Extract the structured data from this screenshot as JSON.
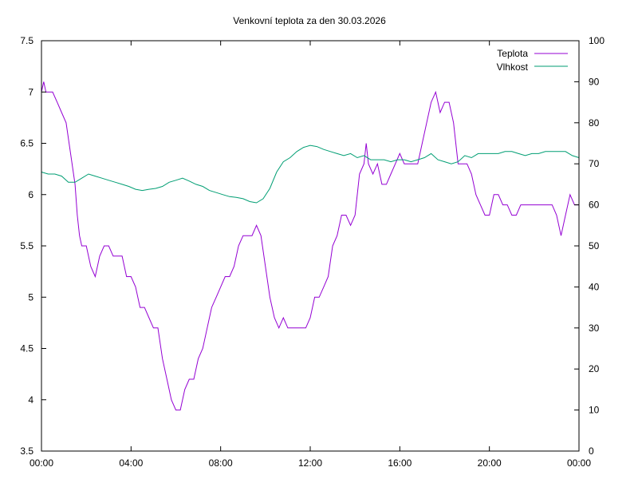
{
  "chart_data": {
    "type": "line",
    "title": "Venkovní teplota za den 30.03.2026",
    "xlabel": "",
    "ylabel": "",
    "y2label": "",
    "x_ticks": [
      "00:00",
      "04:00",
      "08:00",
      "12:00",
      "16:00",
      "20:00",
      "00:00"
    ],
    "xlim_hours": [
      0,
      24
    ],
    "ylim": [
      3.5,
      7.5
    ],
    "y_ticks": [
      "3.5",
      "4",
      "4.5",
      "5",
      "5.5",
      "6",
      "6.5",
      "7",
      "7.5"
    ],
    "y2lim": [
      0,
      100
    ],
    "y2_ticks": [
      "0",
      "10",
      "20",
      "30",
      "40",
      "50",
      "60",
      "70",
      "80",
      "90",
      "100"
    ],
    "grid": false,
    "legend_position": "top-right",
    "series": [
      {
        "name": "Teplota",
        "axis": "left",
        "color": "#9400d3",
        "x_hours": [
          0,
          0.1,
          0.2,
          0.3,
          0.4,
          0.5,
          0.7,
          0.9,
          1.1,
          1.3,
          1.5,
          1.6,
          1.7,
          1.8,
          1.9,
          2.0,
          2.2,
          2.4,
          2.6,
          2.8,
          3.0,
          3.2,
          3.4,
          3.6,
          3.8,
          4.0,
          4.2,
          4.4,
          4.6,
          4.8,
          5.0,
          5.2,
          5.4,
          5.6,
          5.8,
          6.0,
          6.2,
          6.4,
          6.6,
          6.8,
          7.0,
          7.2,
          7.4,
          7.6,
          7.8,
          8.0,
          8.2,
          8.4,
          8.6,
          8.8,
          9.0,
          9.2,
          9.4,
          9.6,
          9.8,
          10.0,
          10.2,
          10.4,
          10.6,
          10.8,
          11.0,
          11.2,
          11.5,
          11.8,
          12.0,
          12.2,
          12.4,
          12.6,
          12.8,
          13.0,
          13.2,
          13.4,
          13.6,
          13.8,
          14.0,
          14.2,
          14.4,
          14.5,
          14.6,
          14.8,
          15.0,
          15.2,
          15.4,
          15.6,
          15.8,
          16.0,
          16.2,
          16.4,
          16.6,
          16.8,
          17.0,
          17.2,
          17.4,
          17.6,
          17.7,
          17.8,
          18.0,
          18.2,
          18.4,
          18.6,
          18.8,
          19.0,
          19.2,
          19.4,
          19.6,
          19.8,
          20.0,
          20.2,
          20.4,
          20.6,
          20.8,
          21.0,
          21.2,
          21.4,
          21.6,
          21.8,
          22.0,
          22.2,
          22.4,
          22.6,
          22.8,
          23.0,
          23.2,
          23.4,
          23.6,
          23.8,
          24.0
        ],
        "values": [
          7.0,
          7.1,
          7.0,
          7.0,
          7.0,
          7.0,
          6.9,
          6.8,
          6.7,
          6.4,
          6.1,
          5.8,
          5.6,
          5.5,
          5.5,
          5.5,
          5.3,
          5.2,
          5.4,
          5.5,
          5.5,
          5.4,
          5.4,
          5.4,
          5.2,
          5.2,
          5.1,
          4.9,
          4.9,
          4.8,
          4.7,
          4.7,
          4.4,
          4.2,
          4.0,
          3.9,
          3.9,
          4.1,
          4.2,
          4.2,
          4.4,
          4.5,
          4.7,
          4.9,
          5.0,
          5.1,
          5.2,
          5.2,
          5.3,
          5.5,
          5.6,
          5.6,
          5.6,
          5.7,
          5.6,
          5.3,
          5.0,
          4.8,
          4.7,
          4.8,
          4.7,
          4.7,
          4.7,
          4.7,
          4.8,
          5.0,
          5.0,
          5.1,
          5.2,
          5.5,
          5.6,
          5.8,
          5.8,
          5.7,
          5.8,
          6.2,
          6.3,
          6.5,
          6.3,
          6.2,
          6.3,
          6.1,
          6.1,
          6.2,
          6.3,
          6.4,
          6.3,
          6.3,
          6.3,
          6.3,
          6.5,
          6.7,
          6.9,
          7.0,
          6.9,
          6.8,
          6.9,
          6.9,
          6.7,
          6.3,
          6.3,
          6.3,
          6.2,
          6.0,
          5.9,
          5.8,
          5.8,
          6.0,
          6.0,
          5.9,
          5.9,
          5.8,
          5.8,
          5.9,
          5.9,
          5.9,
          5.9,
          5.9,
          5.9,
          5.9,
          5.9,
          5.8,
          5.6,
          5.8,
          6.0,
          5.9,
          5.9
        ]
      },
      {
        "name": "Vlhkost",
        "axis": "right",
        "color": "#009e73",
        "x_hours": [
          0,
          0.3,
          0.6,
          0.9,
          1.2,
          1.5,
          1.8,
          2.1,
          2.4,
          2.7,
          3.0,
          3.3,
          3.6,
          3.9,
          4.2,
          4.5,
          4.8,
          5.1,
          5.4,
          5.7,
          6.0,
          6.3,
          6.6,
          6.9,
          7.2,
          7.5,
          7.8,
          8.1,
          8.4,
          8.7,
          9.0,
          9.3,
          9.6,
          9.9,
          10.2,
          10.5,
          10.8,
          11.1,
          11.4,
          11.7,
          12.0,
          12.3,
          12.6,
          12.9,
          13.2,
          13.5,
          13.8,
          14.1,
          14.4,
          14.7,
          15.0,
          15.3,
          15.6,
          15.9,
          16.2,
          16.5,
          16.8,
          17.1,
          17.4,
          17.7,
          18.0,
          18.3,
          18.6,
          18.9,
          19.2,
          19.5,
          19.8,
          20.1,
          20.4,
          20.7,
          21.0,
          21.3,
          21.6,
          21.9,
          22.2,
          22.5,
          22.8,
          23.1,
          23.4,
          23.7,
          24.0
        ],
        "values": [
          68,
          67.5,
          67.5,
          67,
          65.5,
          65.5,
          66.5,
          67.5,
          67,
          66.5,
          66,
          65.5,
          65,
          64.5,
          63.8,
          63.5,
          63.8,
          64,
          64.5,
          65.5,
          66,
          66.5,
          65.8,
          65,
          64.5,
          63.5,
          63,
          62.5,
          62,
          61.8,
          61.5,
          60.8,
          60.5,
          61.5,
          64,
          68,
          70.5,
          71.5,
          73,
          74,
          74.5,
          74.2,
          73.5,
          73,
          72.5,
          72,
          72.5,
          71.5,
          72,
          71,
          71,
          71,
          70.5,
          71,
          71,
          70.5,
          71,
          71.5,
          72.5,
          71,
          70.5,
          70,
          70.5,
          72,
          71.5,
          72.5,
          72.5,
          72.5,
          72.5,
          73,
          73,
          72.5,
          72,
          72.5,
          72.5,
          73,
          73,
          73,
          73,
          72,
          71.5
        ]
      }
    ]
  }
}
